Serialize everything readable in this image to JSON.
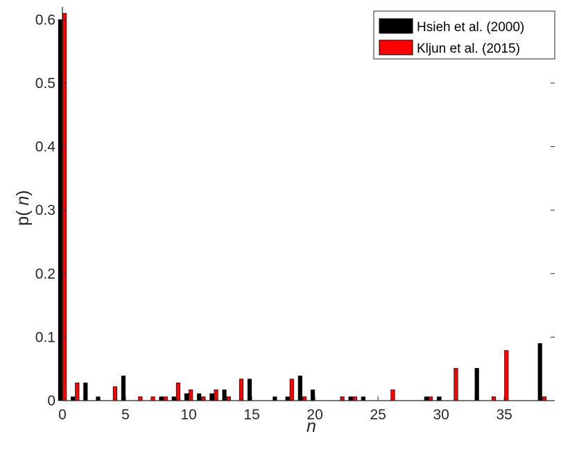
{
  "chart_data": {
    "type": "bar",
    "title": "",
    "xlabel": "n",
    "ylabel_prefix": "p(",
    "ylabel_var": " n",
    "ylabel_suffix": ")",
    "xlim": [
      0,
      39
    ],
    "ylim": [
      0,
      0.62
    ],
    "xticks": [
      0,
      5,
      10,
      15,
      20,
      25,
      30,
      35
    ],
    "yticks": [
      0,
      0.1,
      0.2,
      0.3,
      0.4,
      0.5,
      0.6
    ],
    "ytick_labels": [
      "0",
      "0.1",
      "0.2",
      "0.3",
      "0.4",
      "0.5",
      "0.6"
    ],
    "grid": false,
    "legend_position": "top-right",
    "x": [
      0,
      1,
      2,
      3,
      4,
      5,
      6,
      7,
      8,
      9,
      10,
      11,
      12,
      13,
      14,
      15,
      16,
      17,
      18,
      19,
      20,
      21,
      22,
      23,
      24,
      25,
      26,
      27,
      28,
      29,
      30,
      31,
      32,
      33,
      34,
      35,
      36,
      37,
      38
    ],
    "series": [
      {
        "name": "Hsieh et al. (2000)",
        "color": "#000000",
        "values": [
          0.6,
          0.006,
          0.028,
          0.006,
          0,
          0.039,
          0,
          0,
          0.006,
          0.006,
          0.011,
          0.011,
          0.011,
          0.017,
          0,
          0.034,
          0,
          0.006,
          0.006,
          0.039,
          0.017,
          0,
          0,
          0.006,
          0.006,
          0,
          0,
          0,
          0,
          0.006,
          0.006,
          0,
          0,
          0.051,
          0,
          0,
          0,
          0,
          0.09
        ]
      },
      {
        "name": "Kljun et al. (2015)",
        "color": "#ff0000",
        "values": [
          0.61,
          0.028,
          0,
          0,
          0.022,
          0,
          0.006,
          0.006,
          0.006,
          0.028,
          0.017,
          0.006,
          0.017,
          0.006,
          0.034,
          0,
          0,
          0,
          0.034,
          0.006,
          0,
          0,
          0.006,
          0.006,
          0,
          0,
          0.017,
          0,
          0,
          0.006,
          0,
          0.051,
          0,
          0,
          0.006,
          0.079,
          0,
          0,
          0.006
        ]
      }
    ]
  }
}
